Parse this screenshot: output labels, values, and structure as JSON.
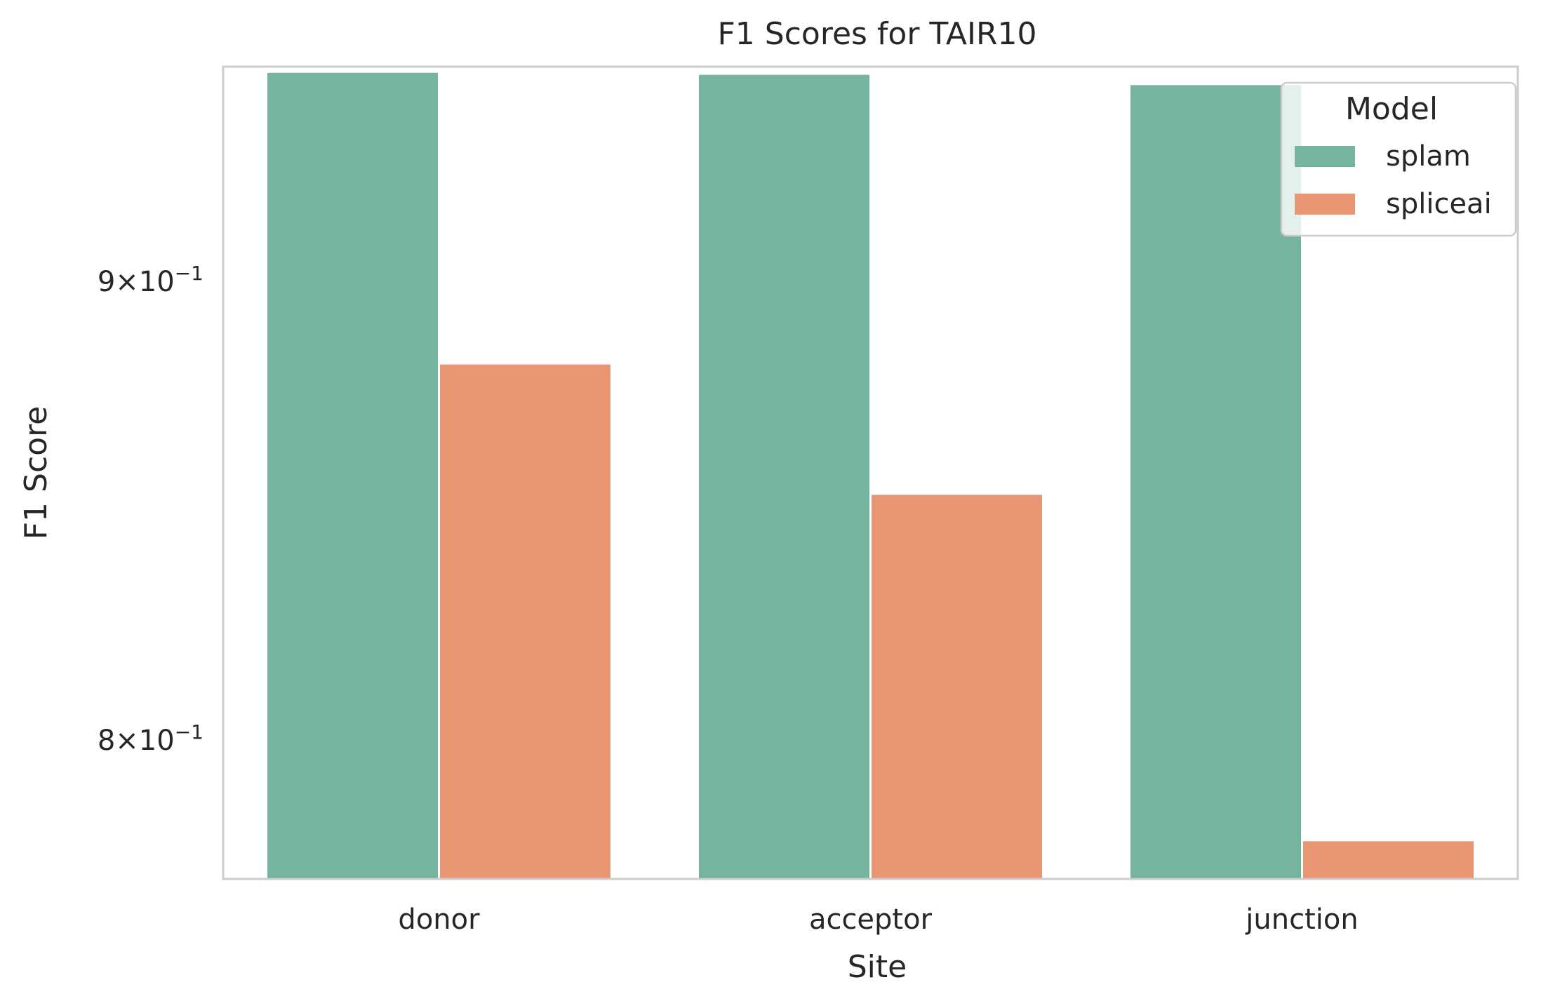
{
  "chart_data": {
    "type": "bar",
    "title": "F1 Scores for TAIR10",
    "xlabel": "Site",
    "ylabel": "F1 Score",
    "yscale": "log",
    "ylim": [
      0.772,
      0.951
    ],
    "yticks": [
      {
        "value": 0.9,
        "mantissa": "9",
        "base": "10",
        "exponent": "−1"
      },
      {
        "value": 0.8,
        "mantissa": "8",
        "base": "10",
        "exponent": "−1"
      }
    ],
    "categories": [
      "donor",
      "acceptor",
      "junction"
    ],
    "series": [
      {
        "name": "splam",
        "color": "#75b5a0",
        "values": [
          0.9495,
          0.949,
          0.9465
        ]
      },
      {
        "name": "spliceai",
        "color": "#e99675",
        "values": [
          0.881,
          0.852,
          0.7795
        ]
      }
    ],
    "legend": {
      "title": "Model",
      "position": "top-right"
    },
    "grid": false
  }
}
